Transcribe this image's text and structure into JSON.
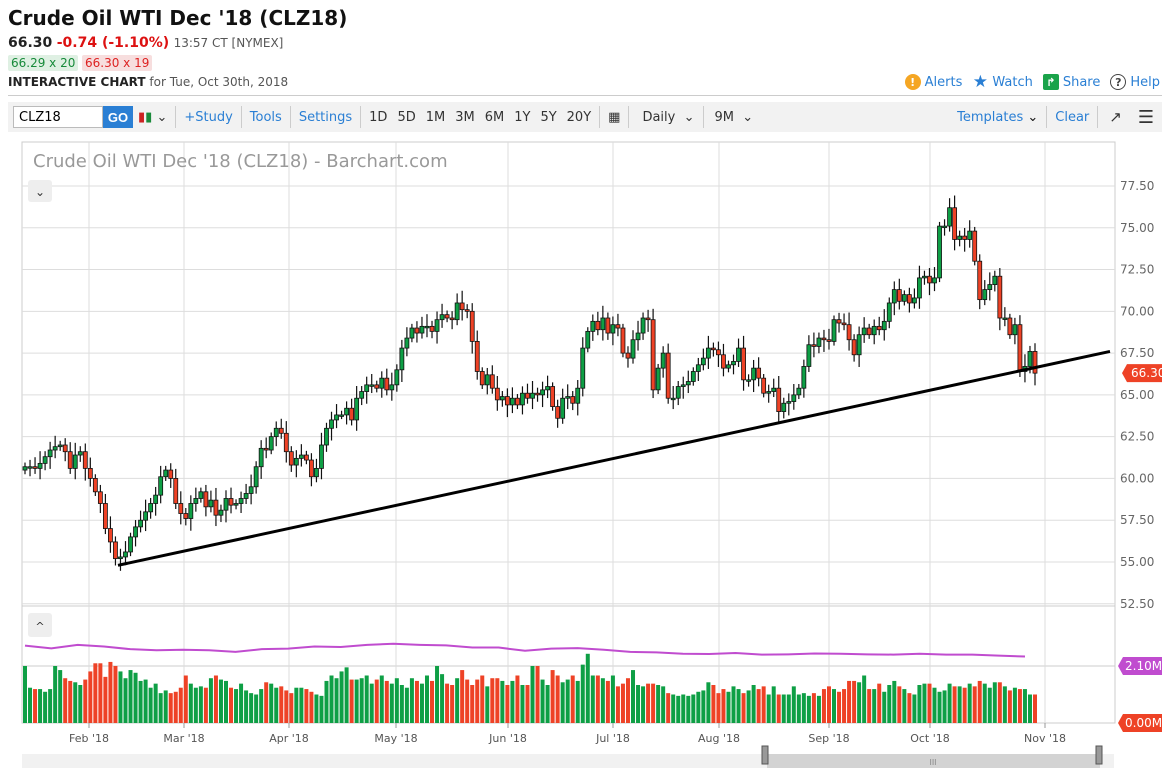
{
  "header": {
    "title": "Crude Oil WTI Dec '18 (CLZ18)",
    "last": "66.30",
    "change": "-0.74 (-1.10%)",
    "time": "13:57 CT [NYMEX]",
    "bid": "66.29 x 20",
    "ask": "66.30 x 19",
    "interactive_label": "INTERACTIVE CHART",
    "interactive_date": "for Tue, Oct 30th, 2018",
    "links": [
      {
        "label": "Alerts",
        "icon": "alert-icon"
      },
      {
        "label": "Watch",
        "icon": "star-icon"
      },
      {
        "label": "Share",
        "icon": "share-icon"
      },
      {
        "label": "Help",
        "icon": "help-icon"
      }
    ]
  },
  "toolbar": {
    "symbol": "CLZ18",
    "go": "GO",
    "study": "+Study",
    "tools": "Tools",
    "settings": "Settings",
    "periods": [
      "1D",
      "5D",
      "1M",
      "3M",
      "6M",
      "1Y",
      "5Y",
      "20Y"
    ],
    "interval": "Daily",
    "range": "9M",
    "templates": "Templates",
    "clear": "Clear"
  },
  "colors": {
    "up": "#0e9f45",
    "down": "#ee4226",
    "volume_avg": "#c04ccf",
    "trendline": "#000000",
    "accent": "#2a7fd4"
  },
  "chart_data": {
    "type": "candlestick",
    "title": "Crude Oil WTI Dec '18 (CLZ18) - Barchart.com",
    "ylim": [
      52.5,
      78.5
    ],
    "y_ticks": [
      "77.50",
      "75.00",
      "72.50",
      "70.00",
      "67.50",
      "65.00",
      "62.50",
      "60.00",
      "57.50",
      "55.00",
      "52.50"
    ],
    "x_ticks": [
      "Feb '18",
      "Mar '18",
      "Apr '18",
      "May '18",
      "Jun '18",
      "Jul '18",
      "Aug '18",
      "Sep '18",
      "Oct '18",
      "Nov '18"
    ],
    "last_price_label": "66.30",
    "close": [
      60.7,
      60.7,
      60.6,
      60.9,
      61.3,
      61.7,
      61.9,
      62.0,
      61.6,
      60.6,
      61.4,
      61.6,
      60.6,
      60.0,
      59.2,
      58.5,
      57.0,
      56.2,
      55.2,
      55.3,
      55.6,
      56.5,
      57.1,
      57.5,
      58.0,
      58.5,
      59.0,
      60.1,
      60.5,
      60.0,
      58.5,
      57.9,
      57.6,
      58.5,
      58.8,
      59.2,
      58.3,
      58.7,
      57.8,
      58.1,
      58.8,
      58.4,
      58.5,
      58.8,
      59.1,
      59.5,
      60.7,
      61.8,
      61.7,
      62.5,
      63.0,
      62.7,
      61.6,
      60.8,
      61.2,
      61.4,
      61.1,
      60.1,
      60.6,
      62.0,
      63.0,
      63.5,
      63.8,
      63.8,
      64.2,
      63.5,
      64.8,
      65.2,
      65.6,
      65.6,
      65.4,
      66.0,
      65.3,
      65.6,
      66.5,
      67.8,
      68.4,
      69.0,
      68.7,
      69.1,
      69.1,
      68.8,
      69.5,
      69.8,
      69.6,
      69.5,
      70.5,
      70.1,
      70.0,
      68.2,
      66.4,
      65.6,
      66.2,
      65.4,
      64.7,
      64.9,
      64.4,
      64.8,
      64.4,
      65.1,
      64.8,
      65.1,
      65.0,
      65.3,
      65.5,
      64.3,
      63.6,
      64.8,
      64.9,
      64.5,
      65.4,
      67.8,
      68.8,
      69.4,
      68.9,
      69.6,
      68.7,
      69.2,
      69.0,
      67.5,
      67.2,
      68.3,
      68.7,
      69.6,
      69.5,
      65.3,
      66.6,
      67.5,
      64.8,
      64.8,
      65.5,
      65.6,
      65.8,
      66.4,
      66.8,
      67.2,
      67.8,
      67.7,
      67.4,
      66.6,
      66.8,
      67.0,
      67.8,
      65.9,
      65.9,
      66.6,
      66.0,
      65.1,
      65.2,
      65.4,
      64.0,
      64.5,
      64.6,
      65.0,
      65.4,
      66.7,
      68.0,
      67.9,
      68.4,
      68.3,
      68.2,
      69.5,
      69.3,
      69.2,
      68.3,
      67.4,
      68.6,
      69.0,
      68.6,
      69.1,
      68.9,
      69.4,
      70.5,
      71.3,
      70.6,
      71.0,
      70.5,
      70.8,
      72.0,
      72.1,
      71.7,
      72.0,
      75.1,
      75.1,
      76.2,
      74.3,
      74.5,
      74.3,
      74.8,
      73.0,
      70.7,
      71.3,
      71.6,
      72.1,
      69.6,
      69.6,
      68.6,
      69.2,
      66.4,
      66.7,
      67.6,
      66.3
    ],
    "start_open": 60.5,
    "volume_ticks": [
      "2.10M",
      "0.00M"
    ],
    "volume_m": [
      2.1,
      1.3,
      1.25,
      1.25,
      1.15,
      1.25,
      2.1,
      1.95,
      1.65,
      1.55,
      1.5,
      1.4,
      1.6,
      1.9,
      2.2,
      2.2,
      1.7,
      2.25,
      2.1,
      1.9,
      1.65,
      1.95,
      1.85,
      1.55,
      1.6,
      1.3,
      1.45,
      1.1,
      1.2,
      1.1,
      1.15,
      1.3,
      1.75,
      1.45,
      1.3,
      1.35,
      1.3,
      1.65,
      1.75,
      1.6,
      1.55,
      1.3,
      1.25,
      1.45,
      1.2,
      1.1,
      1.05,
      1.25,
      1.5,
      1.45,
      1.3,
      1.35,
      1.2,
      1.1,
      1.3,
      1.3,
      1.25,
      1.15,
      1.05,
      1.0,
      1.55,
      1.75,
      1.65,
      1.9,
      2.05,
      1.6,
      1.6,
      1.65,
      1.75,
      1.45,
      1.6,
      1.75,
      1.55,
      1.45,
      1.65,
      1.4,
      1.3,
      1.65,
      1.55,
      1.45,
      1.75,
      1.55,
      2.1,
      1.8,
      1.45,
      1.4,
      1.65,
      1.95,
      1.6,
      1.4,
      1.6,
      1.75,
      1.35,
      1.65,
      1.65,
      1.55,
      1.4,
      1.55,
      1.75,
      1.4,
      1.4,
      2.1,
      2.1,
      1.6,
      1.4,
      1.95,
      1.75,
      1.5,
      1.6,
      1.75,
      1.55,
      2.15,
      2.55,
      1.75,
      1.75,
      1.65,
      1.55,
      1.75,
      1.35,
      1.45,
      1.65,
      1.95,
      1.4,
      1.35,
      1.45,
      1.45,
      1.4,
      1.35,
      1.1,
      1.05,
      1.0,
      1.05,
      1.0,
      1.05,
      1.15,
      1.2,
      1.5,
      1.4,
      1.1,
      1.25,
      1.15,
      1.35,
      1.25,
      1.1,
      1.2,
      1.4,
      1.25,
      1.35,
      1.05,
      1.35,
      1.05,
      1.05,
      1.05,
      1.35,
      1.05,
      1.1,
      1.0,
      1.1,
      1.0,
      1.25,
      1.35,
      1.25,
      1.15,
      1.25,
      1.55,
      1.55,
      1.5,
      1.75,
      1.25,
      1.25,
      1.45,
      1.15,
      1.4,
      1.55,
      1.35,
      1.25,
      1.1,
      1.05,
      1.4,
      1.45,
      1.45,
      1.3,
      1.15,
      1.2,
      1.45,
      1.35,
      1.35,
      1.3,
      1.45,
      1.35,
      1.55,
      1.45,
      1.3,
      1.5,
      1.5,
      1.35,
      1.2,
      1.3,
      1.25,
      1.25,
      1.05,
      1.05,
      0.75
    ],
    "volume_avg_m": [
      2.85,
      2.75,
      2.88,
      2.82,
      2.72,
      2.68,
      2.7,
      2.68,
      2.62,
      2.72,
      2.74,
      2.82,
      2.8,
      2.88,
      2.92,
      2.88,
      2.86,
      2.78,
      2.78,
      2.66,
      2.74,
      2.76,
      2.7,
      2.62,
      2.6,
      2.55,
      2.54,
      2.58,
      2.52,
      2.53,
      2.56,
      2.55,
      2.53,
      2.52,
      2.55,
      2.52,
      2.52,
      2.48,
      2.45
    ],
    "trendline": {
      "from_price": 54.8,
      "to_price": 67.6
    },
    "scroll_handle": "III"
  }
}
